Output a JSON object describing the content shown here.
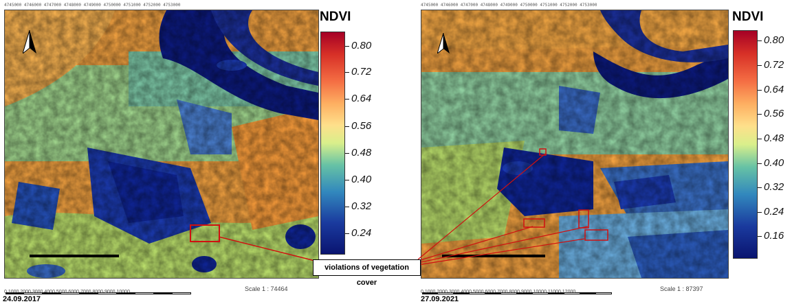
{
  "legend": {
    "title": "NDVI",
    "ticks": [
      "0.80",
      "0.72",
      "0.64",
      "0.56",
      "0.48",
      "0.40",
      "0.32",
      "0.24",
      "0.16"
    ],
    "colors": [
      "#a50026",
      "#d73027",
      "#f46d43",
      "#fdae61",
      "#fee08b",
      "#d9ef8b",
      "#66c2a5",
      "#3288bd",
      "#1a3a9e",
      "#0a1470"
    ]
  },
  "left_map": {
    "date": "24.09.2017",
    "scale": "Scale 1 : 74464",
    "scalebar_numbers": "0      1000     2000     3000     4000     5000     6000     7000     8000     9000    10000",
    "ticks_left": [
      "0.80",
      "0.72",
      "0.64",
      "0.56",
      "0.48",
      "0.40",
      "0.32",
      "0.24"
    ]
  },
  "right_map": {
    "date": "27.09.2021",
    "scale": "Scale 1 : 87397",
    "scalebar_numbers": "0    1000   2000   3000   4000   5000   6000   7000   8000   9000   10000  11000  12000",
    "ticks_right": [
      "0.80",
      "0.72",
      "0.64",
      "0.56",
      "0.48",
      "0.40",
      "0.32",
      "0.24",
      "0.16"
    ]
  },
  "callout": {
    "text": "violations of vegetation cover"
  },
  "frame_coords": "4745000      4746000      4747000      4748000      4749000      4750000      4751000      4752000      4753000"
}
